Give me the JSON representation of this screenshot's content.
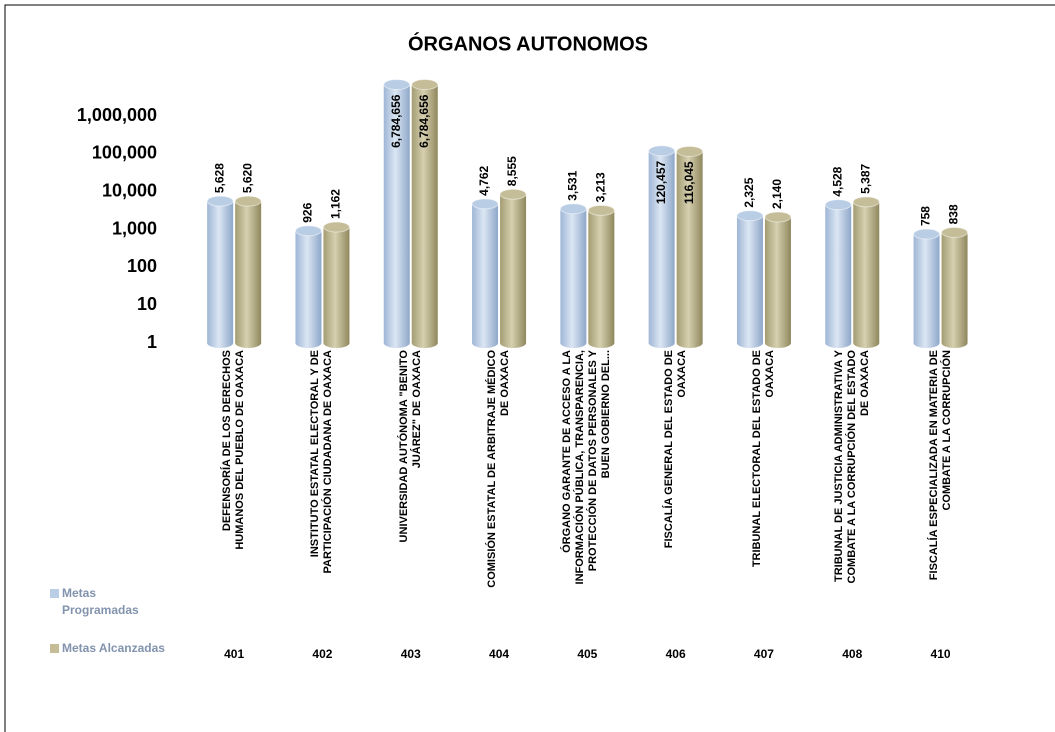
{
  "chart_data": {
    "type": "bar",
    "title": "ÓRGANOS AUTONOMOS",
    "log_scale": true,
    "categories": [
      "DEFENSORÍA DE LOS DERECHOS HUMANOS DEL PUEBLO DE OAXACA",
      "INSTITUTO ESTATAL ELECTORAL Y DE PARTICIPACIÓN CIUDADANA DE OAXACA",
      "UNIVERSIDAD AUTÓNOMA \"BENITO JUÁREZ\" DE OAXACA",
      "COMISIÓN ESTATAL DE ARBITRAJE MÉDICO DE OAXACA",
      "ÓRGANO GARANTE DE ACCESO A LA INFORMACIÓN PÚBLICA, TRANSPARENCIA, PROTECCIÓN DE DATOS PERSONALES Y BUEN GOBIERNO DEL...",
      "FISCALÍA GENERAL DEL ESTADO DE OAXACA",
      "TRIBUNAL ELECTORAL DEL ESTADO DE OAXACA",
      "TRIBUNAL DE JUSTICIA ADMINISTRATIVA Y COMBATE A LA CORRUPCIÓN DEL ESTADO DE OAXACA",
      "FISCALÍA ESPECIALIZADA EN MATERIA DE COMBATE A LA CORRUPCIÓN"
    ],
    "category_codes": [
      "401",
      "402",
      "403",
      "404",
      "405",
      "406",
      "407",
      "408",
      "410"
    ],
    "series": [
      {
        "name": "Metas Programadas",
        "color": "#b9cde5",
        "values": [
          5628,
          926,
          6784656,
          4762,
          3531,
          120457,
          2325,
          4528,
          758
        ],
        "value_labels": [
          "5,628",
          "926",
          "6,784,656",
          "4,762",
          "3,531",
          "120,457",
          "2,325",
          "4,528",
          "758"
        ]
      },
      {
        "name": "Metas Alcanzadas",
        "color": "#c4bd97",
        "values": [
          5620,
          1162,
          6784656,
          8555,
          3213,
          116045,
          2140,
          5387,
          838
        ],
        "value_labels": [
          "5,620",
          "1,162",
          "6,784,656",
          "8,555",
          "3,213",
          "116,045",
          "2,140",
          "5,387",
          "838"
        ]
      }
    ],
    "ylim": [
      1,
      1000000
    ],
    "yticks": [
      1,
      10,
      100,
      {
        "value": 1000,
        "label": "1,000"
      },
      {
        "value": 10000,
        "label": "10,000"
      },
      {
        "value": 100000,
        "label": "100,000"
      },
      {
        "value": 1000000,
        "label": "1,000,000"
      }
    ],
    "legend": "left"
  }
}
